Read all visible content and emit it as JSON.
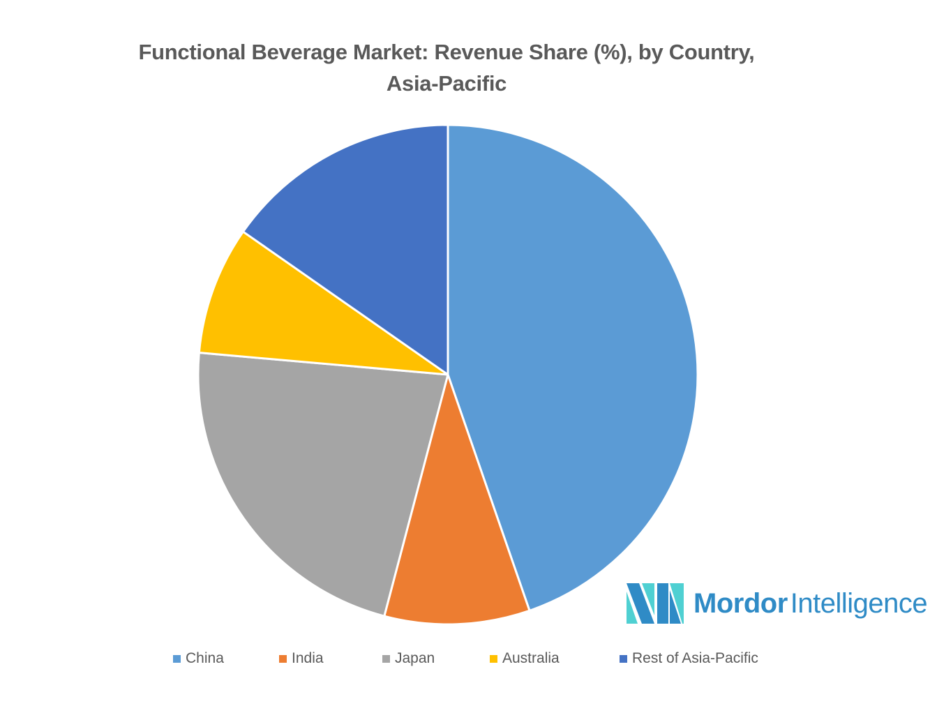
{
  "chart_data": {
    "type": "pie",
    "title": "Functional Beverage Market: Revenue Share (%), by Country, Asia-Pacific",
    "title_lines": [
      "Functional Beverage Market: Revenue Share (%), by Country,",
      "Asia-Pacific"
    ],
    "categories": [
      "China",
      "India",
      "Japan",
      "Australia",
      "Rest of Asia-Pacific"
    ],
    "values": [
      44.7,
      9.4,
      22.3,
      8.3,
      15.3
    ],
    "unit": "%",
    "colors": [
      "#5b9bd5",
      "#ed7d31",
      "#a5a5a5",
      "#ffc000",
      "#4472c4"
    ],
    "start_angle_deg": 0,
    "direction": "clockwise",
    "data_labels": false,
    "legend_position": "bottom",
    "xlabel": "",
    "ylabel": ""
  },
  "legend": {
    "items": [
      {
        "label": "China",
        "color": "#5b9bd5"
      },
      {
        "label": "India",
        "color": "#ed7d31"
      },
      {
        "label": "Japan",
        "color": "#a5a5a5"
      },
      {
        "label": "Australia",
        "color": "#ffc000"
      },
      {
        "label": "Rest of Asia-Pacific",
        "color": "#4472c4"
      }
    ]
  },
  "logo": {
    "brand_bold": "Mordor",
    "brand_light": "Intelligence",
    "color_dark": "#2f8bc6",
    "color_light": "#4fd0d2"
  }
}
